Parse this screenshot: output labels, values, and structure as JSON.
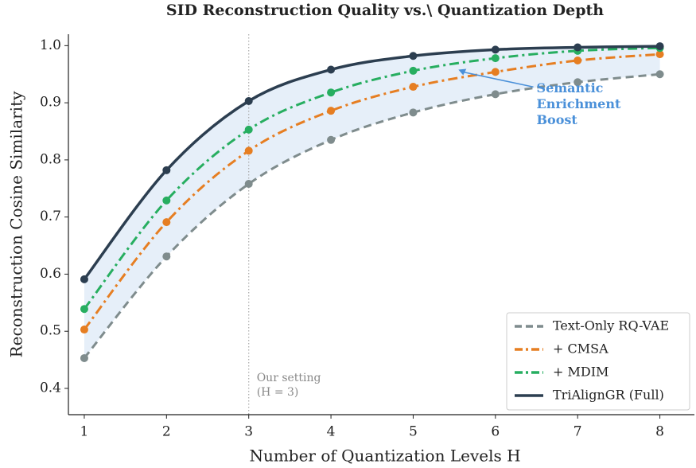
{
  "chart_data": {
    "type": "line",
    "title": "SID Reconstruction Quality vs.\\ Quantization Depth",
    "x_label": "Number of Quantization Levels H",
    "y_label": "Reconstruction Cosine Similarity",
    "x": [
      1,
      2,
      3,
      4,
      5,
      6,
      7,
      8
    ],
    "series": [
      {
        "name": "Text-Only RQ-VAE",
        "color": "#7f8c8d",
        "linestyle": "dashed",
        "values": [
          0.453,
          0.631,
          0.758,
          0.835,
          0.883,
          0.915,
          0.936,
          0.95
        ]
      },
      {
        "name": "+ CMSA",
        "color": "#e67e22",
        "linestyle": "dashdot",
        "values": [
          0.503,
          0.691,
          0.816,
          0.886,
          0.928,
          0.954,
          0.974,
          0.985
        ]
      },
      {
        "name": "+ MDIM",
        "color": "#27ae60",
        "linestyle": "dashdot",
        "values": [
          0.539,
          0.729,
          0.853,
          0.918,
          0.956,
          0.978,
          0.991,
          0.996
        ]
      },
      {
        "name": "TriAlignGR (Full)",
        "color": "#2c3e50",
        "linestyle": "solid",
        "values": [
          0.591,
          0.782,
          0.903,
          0.958,
          0.982,
          0.993,
          0.997,
          0.999
        ]
      }
    ],
    "fill_between": {
      "color": "#dce8f7"
    },
    "xlim": [
      0.807,
      8.42
    ],
    "ylim": [
      0.354,
      1.02
    ],
    "xticks": [
      1,
      2,
      3,
      4,
      5,
      6,
      7,
      8
    ],
    "yticks": [
      0.4,
      0.5,
      0.6,
      0.7,
      0.8,
      0.9,
      {
        "value": 1,
        "label": "1.0"
      }
    ],
    "vline": {
      "x": 3,
      "lines": [
        "Our setting",
        "(H = 3)"
      ]
    },
    "annotation": {
      "lines": [
        "Semantic",
        "Enrichment",
        "Boost"
      ],
      "color": "#4a90d9",
      "x": 6.5,
      "y": 0.897,
      "target_x": 5.55,
      "target_y": 0.958
    },
    "legend": "lower right"
  }
}
